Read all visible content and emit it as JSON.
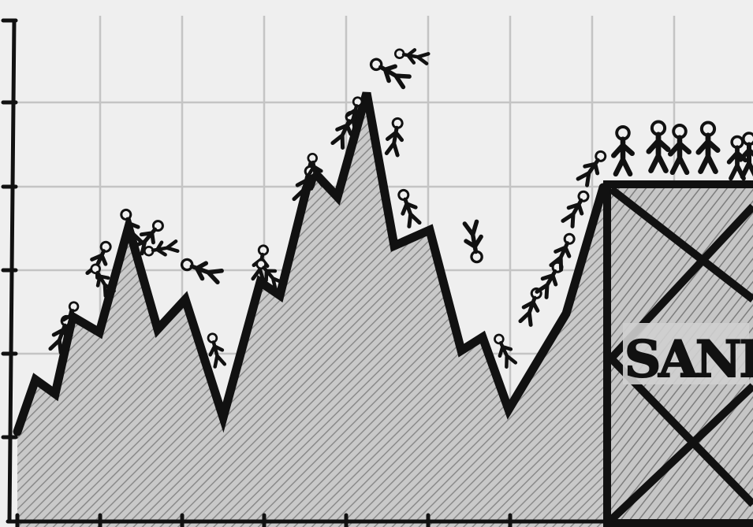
{
  "crate": {
    "label": "SANE"
  },
  "colors": {
    "background": "#efefef",
    "grid": "#c4c4c4",
    "ink": "#111111",
    "hatch_fill": "#c9c9c9",
    "hatch_line": "#8a8a8a"
  },
  "elements": {
    "left_axis_ticks": 6,
    "bottom_axis_ticks": 9,
    "climbers": "many-stick-figures-on-line",
    "fallers": "several-stick-figures-falling",
    "crowd_on_crate": 6
  }
}
